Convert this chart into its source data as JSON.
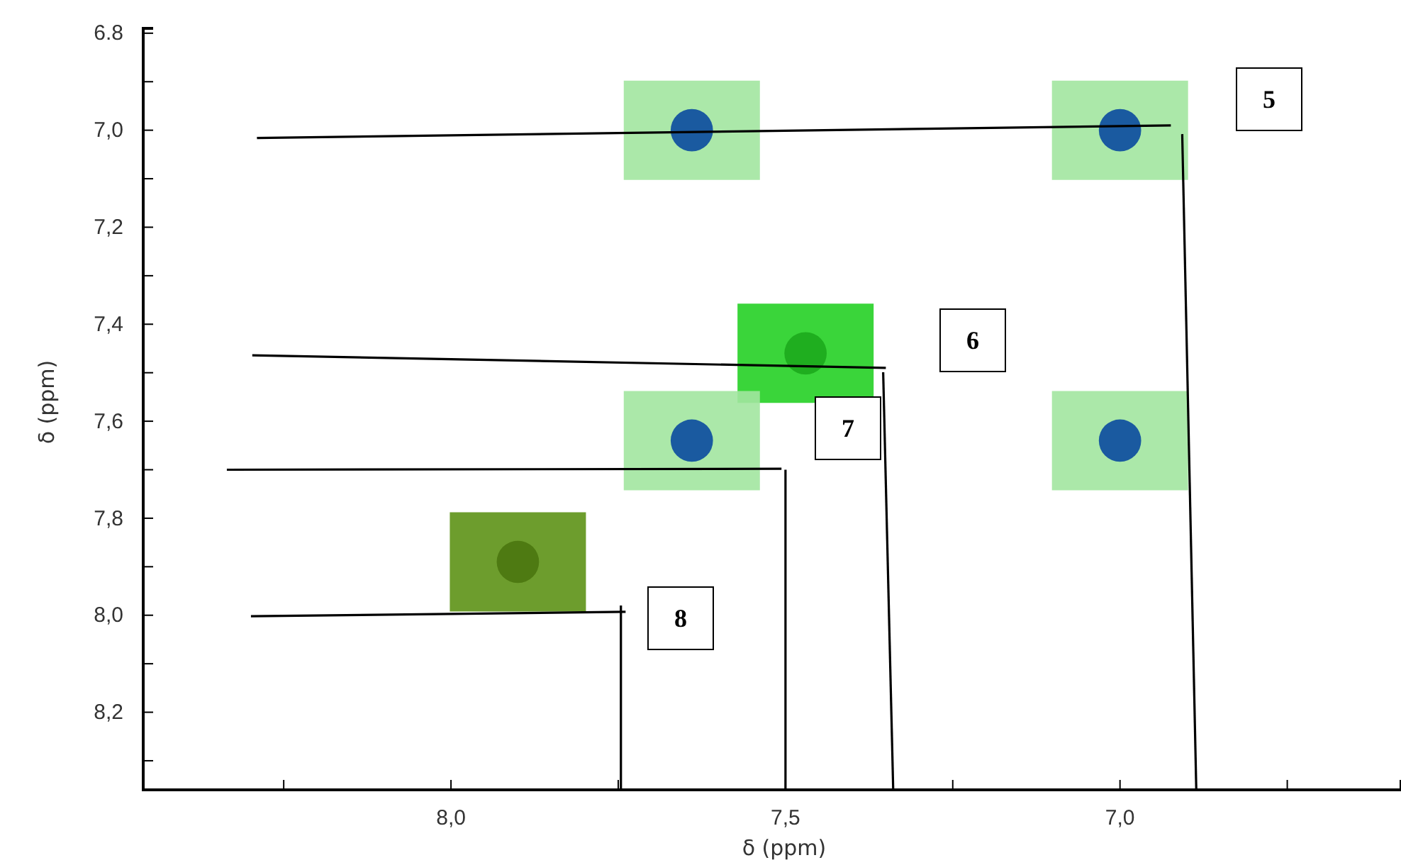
{
  "chart_data": {
    "type": "scatter",
    "xlabel": "δ (ppm)",
    "ylabel": "δ (ppm)",
    "series": [
      {
        "marker": "circle",
        "x": [
          7.64,
          7.0,
          7.47,
          7.64,
          7.0,
          7.9
        ],
        "values": [
          7.0,
          7.0,
          7.46,
          7.64,
          7.64,
          7.89
        ],
        "colors": [
          "#1a5aa0",
          "#1a5aa0",
          "#1fae1f",
          "#1a5aa0",
          "#1a5aa0",
          "#4e7a12"
        ]
      },
      {
        "type": "line",
        "marker": "none",
        "color": "#000000",
        "x": [
          8.29,
          6.924
        ],
        "values": [
          7.016,
          6.99
        ]
      },
      {
        "type": "line",
        "marker": "none",
        "color": "#000000",
        "x": [
          6.907,
          6.886
        ],
        "values": [
          7.008,
          8.36
        ]
      },
      {
        "type": "line",
        "marker": "none",
        "color": "#000000",
        "x": [
          8.297,
          7.35
        ],
        "values": [
          7.464,
          7.49
        ]
      },
      {
        "type": "line",
        "marker": "none",
        "color": "#000000",
        "x": [
          7.354,
          7.339
        ],
        "values": [
          7.499,
          8.36
        ]
      },
      {
        "type": "line",
        "marker": "none",
        "color": "#000000",
        "x": [
          8.335,
          7.506
        ],
        "values": [
          7.7,
          7.698
        ]
      },
      {
        "type": "line",
        "marker": "none",
        "color": "#000000",
        "x": [
          7.5,
          7.5
        ],
        "values": [
          7.7,
          8.36
        ]
      },
      {
        "type": "line",
        "marker": "none",
        "color": "#000000",
        "x": [
          8.299,
          7.739
        ],
        "values": [
          8.002,
          7.993
        ]
      },
      {
        "type": "line",
        "marker": "none",
        "color": "#000000",
        "x": [
          7.746,
          7.746
        ],
        "values": [
          7.98,
          8.36
        ]
      }
    ],
    "xlim": [
      8.46,
      6.58
    ],
    "ylim": [
      8.36,
      6.79
    ],
    "xticks": [
      {
        "value": 8.25,
        "label": null
      },
      {
        "value": 8.0,
        "label": "8,0"
      },
      {
        "value": 7.75,
        "label": null
      },
      {
        "value": 7.5,
        "label": "7,5"
      },
      {
        "value": 7.25,
        "label": null
      },
      {
        "value": 7.0,
        "label": "7,0"
      },
      {
        "value": 6.75,
        "label": null
      }
    ],
    "yticks": [
      {
        "value": 6.8,
        "label": "6.8"
      },
      {
        "value": 6.9,
        "label": null
      },
      {
        "value": 7.0,
        "label": "7,0"
      },
      {
        "value": 7.1,
        "label": null
      },
      {
        "value": 7.2,
        "label": "7,2"
      },
      {
        "value": 7.3,
        "label": null
      },
      {
        "value": 7.4,
        "label": "7,4"
      },
      {
        "value": 7.5,
        "label": null
      },
      {
        "value": 7.6,
        "label": "7,6"
      },
      {
        "value": 7.7,
        "label": null
      },
      {
        "value": 7.8,
        "label": "7,8"
      },
      {
        "value": 7.9,
        "label": null
      },
      {
        "value": 8.0,
        "label": "8,0"
      },
      {
        "value": 8.1,
        "label": null
      },
      {
        "value": 8.2,
        "label": "8,2"
      },
      {
        "value": 8.3,
        "label": null
      }
    ],
    "annotations": [
      "5",
      "6",
      "7",
      "8"
    ]
  }
}
